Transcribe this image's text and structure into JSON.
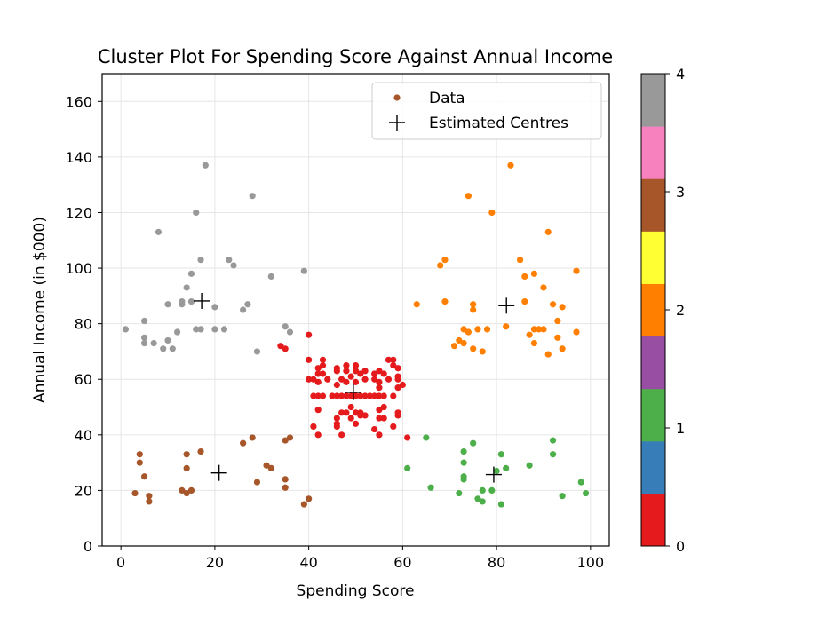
{
  "chart_data": {
    "type": "scatter",
    "title": "Cluster Plot For Spending Score Against Annual Income",
    "xlabel": "Spending Score",
    "ylabel": "Annual Income (in $000)",
    "xlim": [
      -4,
      104
    ],
    "ylim": [
      0,
      170
    ],
    "xticks": [
      0,
      20,
      40,
      60,
      80,
      100
    ],
    "yticks": [
      0,
      20,
      40,
      60,
      80,
      100,
      120,
      140,
      160
    ],
    "grid": true,
    "legend": {
      "placement": "upper right",
      "entries": [
        {
          "label": "Data",
          "marker": "dot",
          "color": "#a65628"
        },
        {
          "label": "Estimated Centres",
          "marker": "plus",
          "color": "#000000"
        }
      ]
    },
    "colorbar": {
      "range": [
        0,
        4
      ],
      "ticks": [
        0,
        1,
        2,
        3,
        4
      ],
      "colormap": "Set1",
      "colors": [
        "#e41a1c",
        "#377eb8",
        "#4daf4a",
        "#984ea3",
        "#ff7f00",
        "#ffff33",
        "#a65628",
        "#f781bf",
        "#999999"
      ]
    },
    "cluster_colors": {
      "0": "#e41a1c",
      "1": "#4daf4a",
      "2": "#ff7f00",
      "3": "#a65628",
      "4": "#999999"
    },
    "series": [
      {
        "cluster": 4,
        "points": [
          [
            1,
            78
          ],
          [
            5,
            75
          ],
          [
            5,
            73
          ],
          [
            5,
            81
          ],
          [
            7,
            73
          ],
          [
            8,
            113
          ],
          [
            9,
            71
          ],
          [
            10,
            87
          ],
          [
            10,
            74
          ],
          [
            11,
            71
          ],
          [
            12,
            77
          ],
          [
            13,
            87
          ],
          [
            13,
            88
          ],
          [
            14,
            93
          ],
          [
            15,
            88
          ],
          [
            15,
            98
          ],
          [
            16,
            120
          ],
          [
            16,
            78
          ],
          [
            17,
            103
          ],
          [
            17,
            78
          ],
          [
            18,
            137
          ],
          [
            20,
            86
          ],
          [
            20,
            78
          ],
          [
            22,
            78
          ],
          [
            23,
            103
          ],
          [
            24,
            101
          ],
          [
            26,
            85
          ],
          [
            27,
            87
          ],
          [
            28,
            126
          ],
          [
            29,
            70
          ],
          [
            32,
            97
          ],
          [
            35,
            79
          ],
          [
            36,
            77
          ],
          [
            39,
            99
          ]
        ]
      },
      {
        "cluster": 3,
        "points": [
          [
            3,
            19
          ],
          [
            4,
            33
          ],
          [
            4,
            30
          ],
          [
            5,
            25
          ],
          [
            6,
            18
          ],
          [
            6,
            16
          ],
          [
            13,
            20
          ],
          [
            14,
            33
          ],
          [
            14,
            28
          ],
          [
            14,
            19
          ],
          [
            15,
            20
          ],
          [
            17,
            34
          ],
          [
            26,
            37
          ],
          [
            28,
            39
          ],
          [
            29,
            23
          ],
          [
            31,
            29
          ],
          [
            32,
            28
          ],
          [
            35,
            38
          ],
          [
            35,
            21
          ],
          [
            35,
            24
          ],
          [
            36,
            39
          ],
          [
            39,
            15
          ],
          [
            40,
            17
          ]
        ]
      },
      {
        "cluster": 0,
        "points": [
          [
            34,
            72
          ],
          [
            35,
            71
          ],
          [
            40,
            76
          ],
          [
            40,
            67
          ],
          [
            40,
            60
          ],
          [
            41,
            60
          ],
          [
            41,
            54
          ],
          [
            41,
            43
          ],
          [
            42,
            64
          ],
          [
            42,
            62
          ],
          [
            42,
            59
          ],
          [
            42,
            54
          ],
          [
            42,
            49
          ],
          [
            42,
            40
          ],
          [
            43,
            65
          ],
          [
            43,
            67
          ],
          [
            43,
            62
          ],
          [
            43,
            54
          ],
          [
            44,
            60
          ],
          [
            45,
            54
          ],
          [
            46,
            64
          ],
          [
            46,
            63
          ],
          [
            46,
            58
          ],
          [
            46,
            54
          ],
          [
            46,
            46
          ],
          [
            46,
            43
          ],
          [
            46,
            44
          ],
          [
            47,
            60
          ],
          [
            47,
            54
          ],
          [
            47,
            48
          ],
          [
            47,
            40
          ],
          [
            48,
            65
          ],
          [
            48,
            63
          ],
          [
            48,
            59
          ],
          [
            48,
            54
          ],
          [
            48,
            48
          ],
          [
            49,
            61
          ],
          [
            49,
            54
          ],
          [
            49,
            50
          ],
          [
            49,
            46
          ],
          [
            50,
            65
          ],
          [
            50,
            63
          ],
          [
            50,
            59
          ],
          [
            50,
            54
          ],
          [
            50,
            48
          ],
          [
            50,
            44
          ],
          [
            51,
            62
          ],
          [
            51,
            54
          ],
          [
            51,
            48
          ],
          [
            51,
            47
          ],
          [
            52,
            60
          ],
          [
            52,
            54
          ],
          [
            52,
            47
          ],
          [
            52,
            63
          ],
          [
            53,
            54
          ],
          [
            54,
            62
          ],
          [
            54,
            60
          ],
          [
            54,
            54
          ],
          [
            54,
            42
          ],
          [
            55,
            63
          ],
          [
            55,
            59
          ],
          [
            55,
            57
          ],
          [
            55,
            54
          ],
          [
            55,
            49
          ],
          [
            55,
            46
          ],
          [
            55,
            40
          ],
          [
            56,
            62
          ],
          [
            56,
            50
          ],
          [
            56,
            46
          ],
          [
            56,
            54
          ],
          [
            57,
            67
          ],
          [
            57,
            60
          ],
          [
            58,
            67
          ],
          [
            58,
            54
          ],
          [
            58,
            43
          ],
          [
            58,
            65
          ],
          [
            59,
            61
          ],
          [
            59,
            57
          ],
          [
            59,
            48
          ],
          [
            59,
            47
          ],
          [
            59,
            64
          ],
          [
            59,
            60
          ],
          [
            60,
            58
          ],
          [
            61,
            39
          ]
        ]
      },
      {
        "cluster": 2,
        "points": [
          [
            63,
            87
          ],
          [
            68,
            101
          ],
          [
            69,
            103
          ],
          [
            69,
            88
          ],
          [
            71,
            72
          ],
          [
            72,
            74
          ],
          [
            73,
            73
          ],
          [
            73,
            78
          ],
          [
            74,
            126
          ],
          [
            74,
            77
          ],
          [
            75,
            87
          ],
          [
            75,
            85
          ],
          [
            75,
            71
          ],
          [
            76,
            78
          ],
          [
            77,
            70
          ],
          [
            78,
            78
          ],
          [
            79,
            120
          ],
          [
            82,
            79
          ],
          [
            83,
            137
          ],
          [
            85,
            103
          ],
          [
            86,
            97
          ],
          [
            86,
            88
          ],
          [
            87,
            76
          ],
          [
            88,
            98
          ],
          [
            88,
            78
          ],
          [
            88,
            73
          ],
          [
            89,
            78
          ],
          [
            90,
            78
          ],
          [
            90,
            93
          ],
          [
            91,
            113
          ],
          [
            91,
            69
          ],
          [
            92,
            87
          ],
          [
            93,
            81
          ],
          [
            93,
            75
          ],
          [
            94,
            86
          ],
          [
            94,
            71
          ],
          [
            97,
            99
          ],
          [
            97,
            77
          ]
        ]
      },
      {
        "cluster": 1,
        "points": [
          [
            61,
            28
          ],
          [
            65,
            39
          ],
          [
            66,
            21
          ],
          [
            72,
            19
          ],
          [
            73,
            34
          ],
          [
            73,
            30
          ],
          [
            73,
            25
          ],
          [
            73,
            24
          ],
          [
            75,
            37
          ],
          [
            76,
            17
          ],
          [
            77,
            20
          ],
          [
            77,
            16
          ],
          [
            79,
            20
          ],
          [
            80,
            27
          ],
          [
            81,
            33
          ],
          [
            81,
            15
          ],
          [
            82,
            28
          ],
          [
            87,
            29
          ],
          [
            92,
            38
          ],
          [
            92,
            33
          ],
          [
            94,
            18
          ],
          [
            98,
            23
          ],
          [
            99,
            19
          ]
        ]
      }
    ],
    "centres": [
      {
        "cluster": 4,
        "x": 17.2,
        "y": 88.2
      },
      {
        "cluster": 3,
        "x": 20.9,
        "y": 26.3
      },
      {
        "cluster": 0,
        "x": 49.5,
        "y": 55.3
      },
      {
        "cluster": 2,
        "x": 82.1,
        "y": 86.5
      },
      {
        "cluster": 1,
        "x": 79.4,
        "y": 25.7
      }
    ]
  }
}
